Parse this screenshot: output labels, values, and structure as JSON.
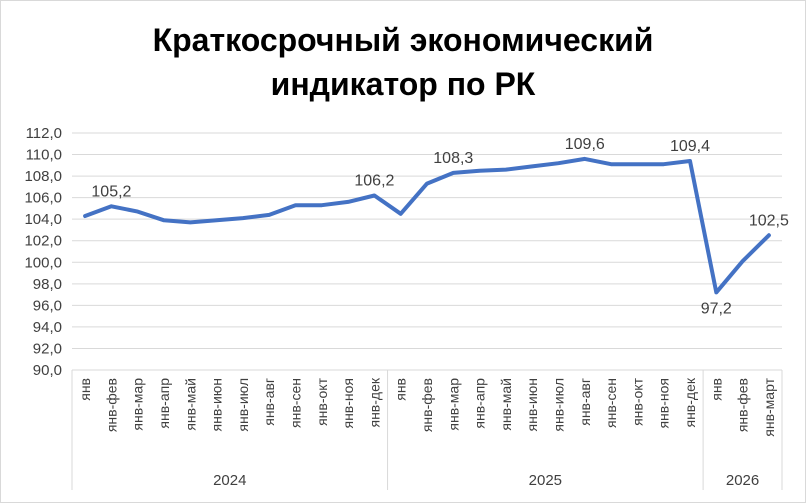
{
  "chart_data": {
    "type": "line",
    "title_lines": [
      "Краткосрочный экономический",
      "индикатор по РК"
    ],
    "series": [
      {
        "color": "#4472c4",
        "values": [
          104.3,
          105.2,
          104.7,
          103.9,
          103.7,
          103.9,
          104.1,
          104.4,
          105.3,
          105.3,
          105.6,
          106.2,
          104.5,
          107.3,
          108.3,
          108.5,
          108.6,
          108.9,
          109.2,
          109.6,
          109.1,
          109.1,
          109.1,
          109.4,
          97.2,
          100.1,
          102.5
        ]
      }
    ],
    "categories": [
      "янв",
      "янв-фев",
      "янв-мар",
      "янв-апр",
      "янв-май",
      "янв-июн",
      "янв-июл",
      "янв-авг",
      "янв-сен",
      "янв-окт",
      "янв-ноя",
      "янв-дек",
      "янв",
      "янв-фев",
      "янв-мар",
      "янв-апр",
      "янв-май",
      "янв-июн",
      "янв-июл",
      "янв-авг",
      "янв-сен",
      "янв-окт",
      "янв-ноя",
      "янв-дек",
      "янв",
      "янв-фев",
      "янв-март"
    ],
    "groups": [
      {
        "label": "2024",
        "start": 0,
        "end": 11
      },
      {
        "label": "2025",
        "start": 12,
        "end": 23
      },
      {
        "label": "2026",
        "start": 24,
        "end": 26
      }
    ],
    "ylim": [
      90,
      112
    ],
    "ytick_step": 2,
    "ytick_labels": [
      "90,0",
      "92,0",
      "94,0",
      "96,0",
      "98,0",
      "100,0",
      "102,0",
      "104,0",
      "106,0",
      "108,0",
      "110,0",
      "112,0"
    ],
    "data_labels": [
      {
        "index": 1,
        "text": "105,2",
        "placement": "above"
      },
      {
        "index": 11,
        "text": "106,2",
        "placement": "above"
      },
      {
        "index": 14,
        "text": "108,3",
        "placement": "above"
      },
      {
        "index": 19,
        "text": "109,6",
        "placement": "above"
      },
      {
        "index": 23,
        "text": "109,4",
        "placement": "above"
      },
      {
        "index": 24,
        "text": "97,2",
        "placement": "below"
      },
      {
        "index": 26,
        "text": "102,5",
        "placement": "above"
      }
    ],
    "grid": true,
    "legend": "none"
  }
}
